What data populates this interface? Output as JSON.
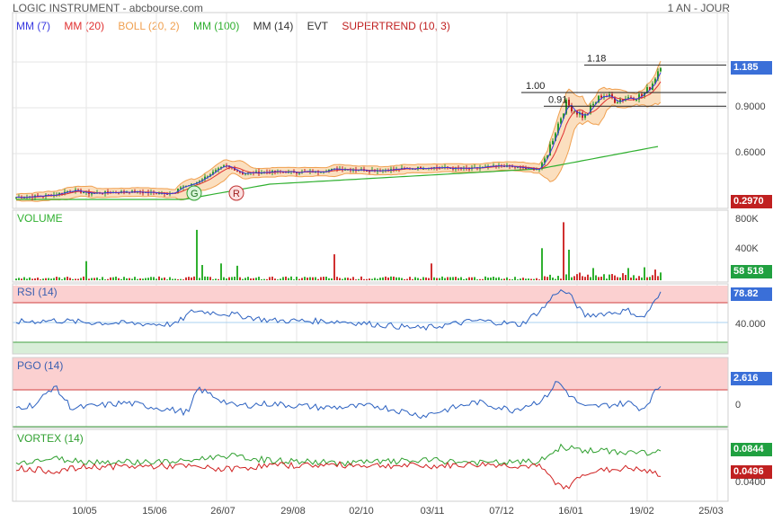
{
  "header": {
    "title": "LOGIC INSTRUMENT - abcbourse.com",
    "period": "1 AN - JOUR"
  },
  "legend": [
    {
      "label": "MM (7)",
      "color": "#3a3ae0"
    },
    {
      "label": "MM (20)",
      "color": "#e03030"
    },
    {
      "label": "BOLL (20, 2)",
      "color": "#f0a050"
    },
    {
      "label": "MM (100)",
      "color": "#30b030"
    },
    {
      "label": "MM (14)",
      "color": "#333333"
    },
    {
      "label": "EVT",
      "color": "#333333"
    },
    {
      "label": "SUPERTREND (10, 3)",
      "color": "#c02020"
    }
  ],
  "panels": {
    "volume": "VOLUME",
    "rsi": "RSI (14)",
    "pgo": "PGO (14)",
    "vortex": "VORTEX (14)"
  },
  "tags": {
    "price": "1.185",
    "support": "0.2970",
    "volume": "58 518",
    "rsi": "78.82",
    "pgo": "2.616",
    "vortex_plus": "0.0844",
    "vortex_minus": "0.0496"
  },
  "markers": {
    "signal_g": "G",
    "signal_r": "R"
  },
  "chart_data": {
    "type": "line",
    "x_ticks": [
      "10/05",
      "15/06",
      "26/07",
      "29/08",
      "02/10",
      "03/11",
      "07/12",
      "16/01",
      "19/02",
      "25/03"
    ],
    "price": {
      "y_ticks": [
        "0.9000",
        "0.6000"
      ],
      "current": 1.185,
      "supertrend": 0.297,
      "fib_levels": [
        {
          "label": "1.18",
          "value": 1.18
        },
        {
          "label": "1.00",
          "value": 1.0
        },
        {
          "label": "0.91",
          "value": 0.91
        }
      ],
      "close_anchors": [
        [
          0,
          0.31
        ],
        [
          40,
          0.32
        ],
        [
          60,
          0.33
        ],
        [
          80,
          0.36
        ],
        [
          100,
          0.34
        ],
        [
          140,
          0.35
        ],
        [
          195,
          0.34
        ],
        [
          200,
          0.38
        ],
        [
          215,
          0.4
        ],
        [
          235,
          0.47
        ],
        [
          250,
          0.52
        ],
        [
          260,
          0.5
        ],
        [
          270,
          0.47
        ],
        [
          300,
          0.48
        ],
        [
          350,
          0.48
        ],
        [
          375,
          0.5
        ],
        [
          420,
          0.49
        ],
        [
          480,
          0.51
        ],
        [
          520,
          0.5
        ],
        [
          560,
          0.52
        ],
        [
          590,
          0.5
        ],
        [
          602,
          0.5
        ],
        [
          610,
          0.62
        ],
        [
          620,
          0.78
        ],
        [
          630,
          0.93
        ],
        [
          640,
          0.88
        ],
        [
          650,
          0.84
        ],
        [
          660,
          0.92
        ],
        [
          670,
          0.99
        ],
        [
          685,
          0.95
        ],
        [
          700,
          0.97
        ],
        [
          715,
          0.98
        ],
        [
          725,
          1.05
        ],
        [
          735,
          1.185
        ]
      ],
      "mm100_anchors": [
        [
          0,
          0.3
        ],
        [
          205,
          0.3
        ],
        [
          300,
          0.4
        ],
        [
          600,
          0.5
        ],
        [
          735,
          0.65
        ]
      ]
    },
    "volume": {
      "y_ticks": [
        "800K",
        "400K"
      ],
      "spikes": [
        [
          95,
          250
        ],
        [
          218,
          660
        ],
        [
          225,
          200
        ],
        [
          245,
          220
        ],
        [
          265,
          190
        ],
        [
          372,
          340
        ],
        [
          480,
          220
        ],
        [
          602,
          420
        ],
        [
          628,
          760
        ],
        [
          632,
          400
        ],
        [
          660,
          160
        ],
        [
          700,
          160
        ],
        [
          718,
          170
        ],
        [
          730,
          140
        ]
      ]
    },
    "rsi": {
      "y_ticks": [
        "78.82",
        "40.000"
      ],
      "overbought": 70,
      "oversold": 30,
      "anchors": [
        [
          0,
          50
        ],
        [
          60,
          52
        ],
        [
          100,
          50
        ],
        [
          195,
          48
        ],
        [
          215,
          62
        ],
        [
          260,
          58
        ],
        [
          300,
          52
        ],
        [
          380,
          51
        ],
        [
          470,
          44
        ],
        [
          530,
          52
        ],
        [
          580,
          48
        ],
        [
          605,
          65
        ],
        [
          620,
          82
        ],
        [
          632,
          80
        ],
        [
          650,
          57
        ],
        [
          700,
          62
        ],
        [
          715,
          54
        ],
        [
          735,
          78.82
        ]
      ]
    },
    "pgo": {
      "y_ticks": [
        "2.616",
        "0"
      ],
      "anchors": [
        [
          0,
          -0.5
        ],
        [
          40,
          0.2
        ],
        [
          60,
          2.5
        ],
        [
          80,
          -0.3
        ],
        [
          140,
          0.4
        ],
        [
          210,
          -0.8
        ],
        [
          220,
          2.2
        ],
        [
          260,
          0
        ],
        [
          300,
          0.3
        ],
        [
          360,
          -0.2
        ],
        [
          420,
          0
        ],
        [
          470,
          -1.2
        ],
        [
          530,
          0.5
        ],
        [
          570,
          -0.5
        ],
        [
          605,
          0.8
        ],
        [
          620,
          3.1
        ],
        [
          635,
          1.2
        ],
        [
          650,
          -0.2
        ],
        [
          700,
          0.4
        ],
        [
          715,
          -0.4
        ],
        [
          735,
          2.616
        ]
      ]
    },
    "vortex": {
      "y_ticks": [
        "0.0844",
        "0.0496",
        "0.0400"
      ],
      "plus_anchors": [
        [
          0,
          0.066
        ],
        [
          60,
          0.075
        ],
        [
          100,
          0.07
        ],
        [
          200,
          0.07
        ],
        [
          250,
          0.08
        ],
        [
          300,
          0.072
        ],
        [
          380,
          0.068
        ],
        [
          480,
          0.072
        ],
        [
          540,
          0.068
        ],
        [
          600,
          0.07
        ],
        [
          625,
          0.094
        ],
        [
          650,
          0.088
        ],
        [
          700,
          0.085
        ],
        [
          735,
          0.0844
        ]
      ],
      "minus_anchors": [
        [
          0,
          0.062
        ],
        [
          60,
          0.055
        ],
        [
          100,
          0.062
        ],
        [
          200,
          0.063
        ],
        [
          250,
          0.058
        ],
        [
          300,
          0.064
        ],
        [
          380,
          0.065
        ],
        [
          480,
          0.063
        ],
        [
          540,
          0.066
        ],
        [
          600,
          0.062
        ],
        [
          628,
          0.025
        ],
        [
          650,
          0.053
        ],
        [
          700,
          0.06
        ],
        [
          735,
          0.0496
        ]
      ]
    }
  }
}
